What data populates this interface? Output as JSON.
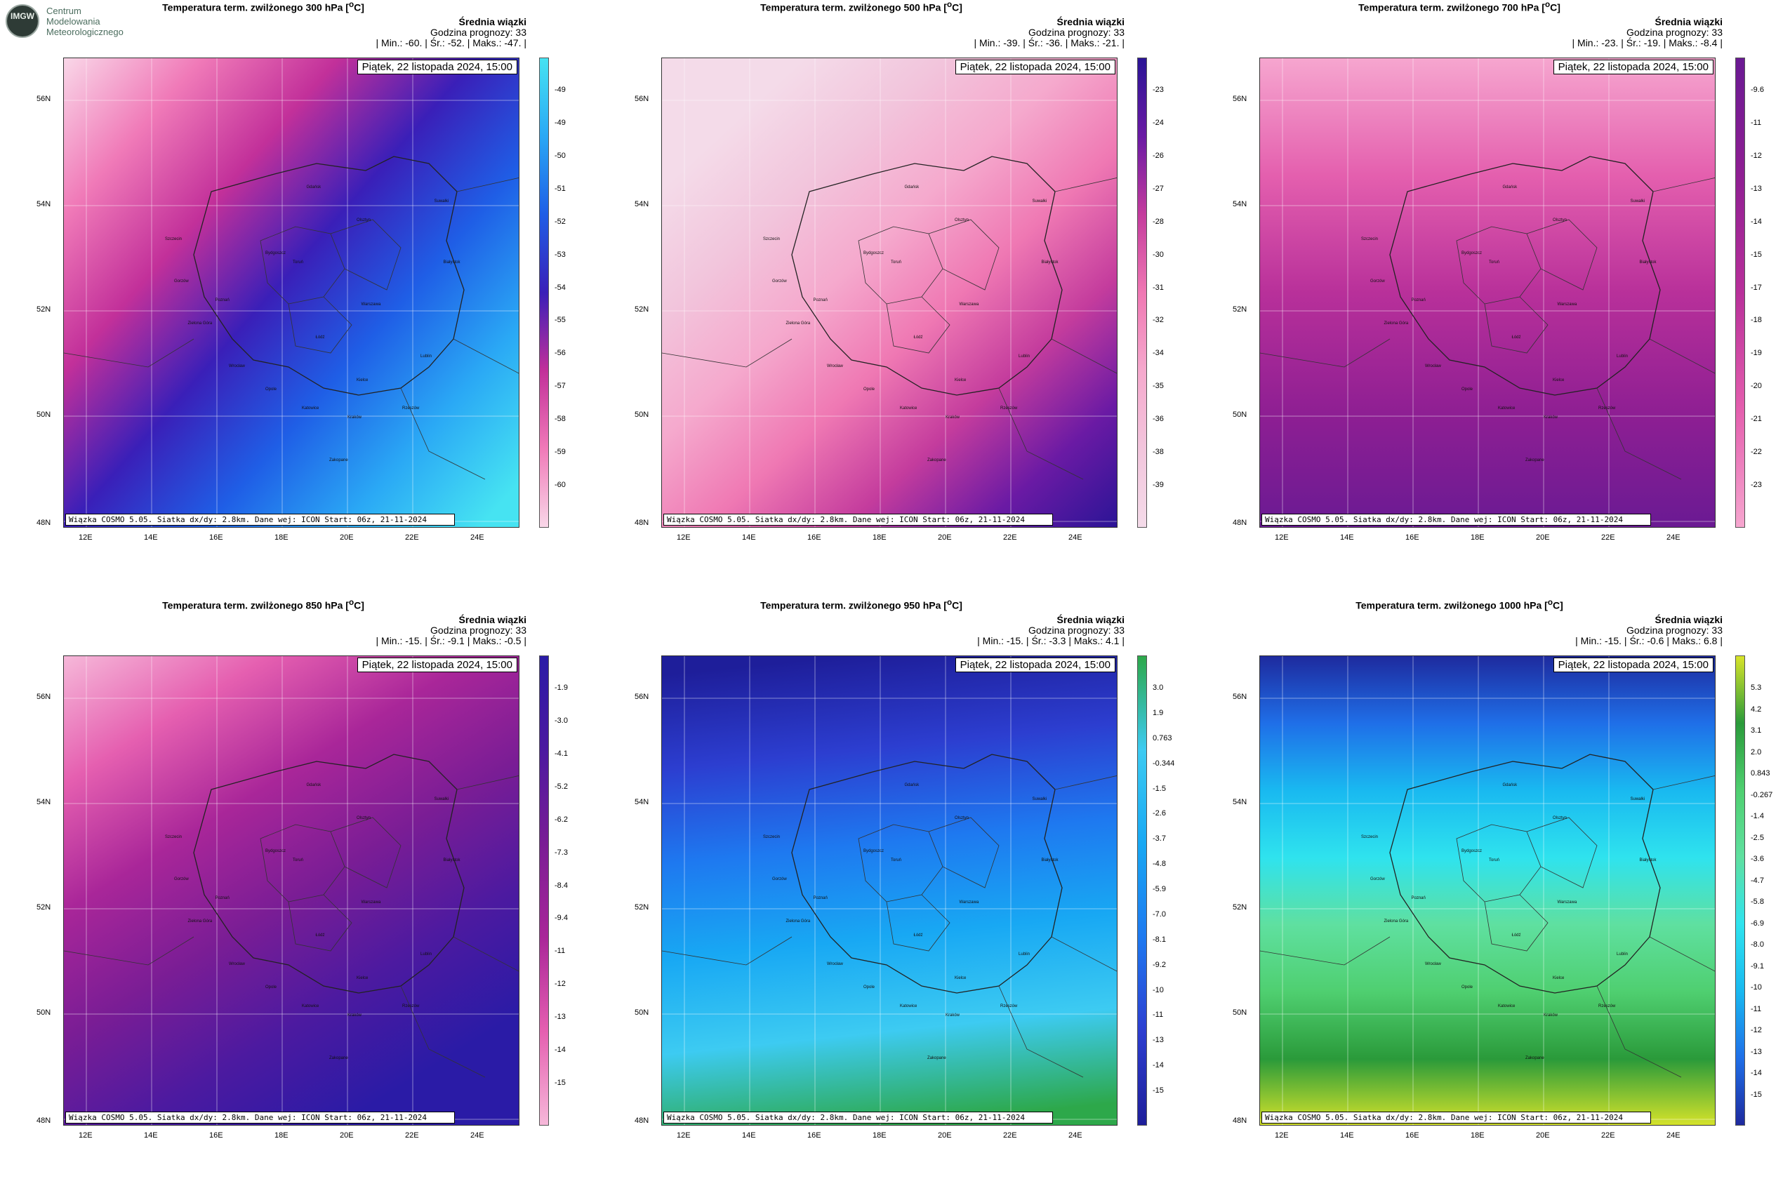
{
  "logo": {
    "l1": "Centrum",
    "l2": "Modelowania",
    "l3": "Meteorologicznego",
    "badge": "IMGW"
  },
  "common": {
    "info_header": "Średnia wiązki",
    "forecast_hour": "Godzina prognozy: 33",
    "date": "Piątek, 22 listopada 2024, 15:00",
    "footer": "Wiązka COSMO 5.05. Siatka dx/dy: 2.8km. Dane wej: ICON Start: 06z, 21-11-2024",
    "lat_ticks": [
      "56N",
      "54N",
      "52N",
      "50N",
      "48N"
    ],
    "lon_ticks": [
      "12E",
      "14E",
      "16E",
      "18E",
      "20E",
      "22E",
      "24E"
    ]
  },
  "panels": [
    {
      "title": "Temperatura term. zwilżonego 300 hPa [°C]",
      "stats": "| Min.:   -60. | Śr.:   -52. | Maks.:   -47. |",
      "colorbar_labels": [
        "-49",
        "-49",
        "-50",
        "-51",
        "-52",
        "-53",
        "-54",
        "-55",
        "-56",
        "-57",
        "-58",
        "-59",
        "-60"
      ],
      "scheme": "cool_blue"
    },
    {
      "title": "Temperatura term. zwilżonego 500 hPa [°C]",
      "stats": "| Min.:   -39. | Śr.:   -36. | Maks.:   -21. |",
      "colorbar_labels": [
        "-23",
        "-24",
        "-26",
        "-27",
        "-28",
        "-30",
        "-31",
        "-32",
        "-34",
        "-35",
        "-36",
        "-38",
        "-39"
      ],
      "scheme": "pink_light"
    },
    {
      "title": "Temperatura term. zwilżonego 700 hPa [°C]",
      "stats": "| Min.:   -23. | Śr.:   -19. | Maks.:   -8.4 |",
      "colorbar_labels": [
        "-9.6",
        "-11",
        "-12",
        "-13",
        "-14",
        "-15",
        "-17",
        "-18",
        "-19",
        "-20",
        "-21",
        "-22",
        "-23"
      ],
      "scheme": "magenta"
    },
    {
      "title": "Temperatura term. zwilżonego 850 hPa [°C]",
      "stats": "| Min.:   -15. | Śr.:   -9.1 | Maks.:   -0.5 |",
      "colorbar_labels": [
        "-1.9",
        "-3.0",
        "-4.1",
        "-5.2",
        "-6.2",
        "-7.3",
        "-8.4",
        "-9.4",
        "-11",
        "-12",
        "-13",
        "-14",
        "-15"
      ],
      "scheme": "purple"
    },
    {
      "title": "Temperatura term. zwilżonego 950 hPa [°C]",
      "stats": "| Min.:   -15. | Śr.:   -3.3 | Maks.:   4.1 |",
      "colorbar_labels": [
        "3.0",
        "1.9",
        "0.763",
        "-0.344",
        "-1.5",
        "-2.6",
        "-3.7",
        "-4.8",
        "-5.9",
        "-7.0",
        "-8.1",
        "-9.2",
        "-10",
        "-11",
        "-13",
        "-14",
        "-15"
      ],
      "scheme": "blue"
    },
    {
      "title": "Temperatura term. zwilżonego 1000 hPa [°C]",
      "stats": "| Min.:   -15. | Śr.:   -0.6 | Maks.:   6.8 |",
      "colorbar_labels": [
        "5.3",
        "4.2",
        "3.1",
        "2.0",
        "0.843",
        "-0.267",
        "-1.4",
        "-2.5",
        "-3.6",
        "-4.7",
        "-5.8",
        "-6.9",
        "-8.0",
        "-9.1",
        "-10",
        "-11",
        "-12",
        "-13",
        "-14",
        "-15"
      ],
      "scheme": "cyan_green"
    }
  ],
  "colors": {
    "cool_blue": [
      "#f9d7e8",
      "#f07ab8",
      "#c2309a",
      "#3a1fb8",
      "#1f5ee6",
      "#2aa8f5",
      "#46e3f2"
    ],
    "pink_light": [
      "#f4dbe9",
      "#f2c5dc",
      "#f5a9cd",
      "#ef78b3",
      "#c43c9d",
      "#6a1aa4",
      "#2a1496"
    ],
    "magenta": [
      "#f6a6cf",
      "#e45fae",
      "#b8309a",
      "#8f1f93",
      "#6a1a93"
    ],
    "purple": [
      "#f6b8d9",
      "#e55fb0",
      "#a92699",
      "#7a1d95",
      "#4c1aa0",
      "#2a1ba6"
    ],
    "blue": [
      "#1e1e9a",
      "#2c3ed0",
      "#1e79f0",
      "#18a8f3",
      "#3dcbf2",
      "#2da84a"
    ],
    "cyan_green": [
      "#1e2a9e",
      "#1f6fe8",
      "#19b9f0",
      "#2fe3ee",
      "#5fe0a0",
      "#4fcf70",
      "#2a9a3a",
      "#d8e42a"
    ]
  },
  "cities": [
    "Gdańsk",
    "Olsztyn",
    "Suwałki",
    "Szczecin",
    "Bydgoszcz",
    "Toruń",
    "Białystok",
    "Gorzów",
    "Poznań",
    "Warszawa",
    "Zielona Góra",
    "Łódź",
    "Wrocław",
    "Lublin",
    "Opole",
    "Kielce",
    "Katowice",
    "Kraków",
    "Rzeszów",
    "Zakopane"
  ]
}
